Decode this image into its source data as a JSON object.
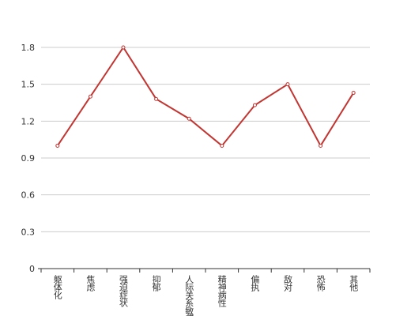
{
  "chart_data": {
    "type": "line",
    "categories": [
      "躯体化",
      "焦虑",
      "强迫症状",
      "抑郁",
      "人际关系敏感",
      "精神病性",
      "偏执",
      "敌对",
      "恐怖",
      "其他"
    ],
    "values": [
      1.0,
      1.4,
      1.8,
      1.38,
      1.22,
      1.0,
      1.33,
      1.5,
      1.0,
      1.43
    ],
    "color": "#c23531",
    "ylim": [
      0,
      1.8
    ],
    "yticks": [
      0,
      0.3,
      0.6,
      0.9,
      1.2,
      1.5,
      1.8
    ],
    "grid": true
  }
}
